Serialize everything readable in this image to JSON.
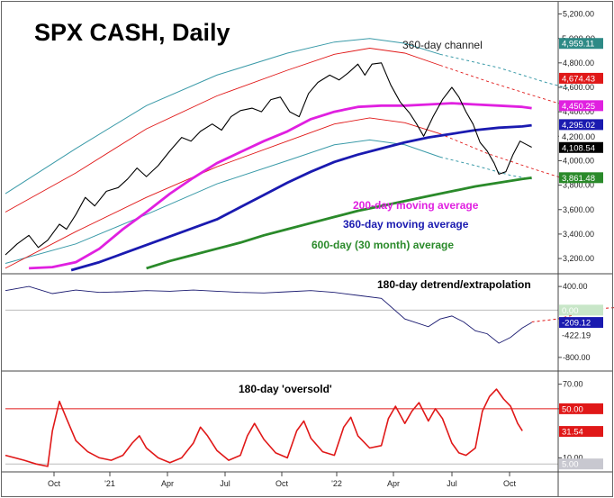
{
  "chart_data": [
    {
      "type": "line",
      "title": "SPX CASH, Daily",
      "x_ticks": [
        "Oct",
        "'21",
        "Apr",
        "Jul",
        "Oct",
        "'22",
        "Apr",
        "Jul",
        "Oct"
      ],
      "y_ticks": [
        3200,
        3400,
        3600,
        3800,
        4000,
        4200,
        4400,
        4600,
        4800,
        5000,
        5200
      ],
      "ylim": [
        3090,
        5270
      ],
      "series": [
        {
          "name": "SPX",
          "color": "#000000",
          "points": [
            [
              0,
              3230
            ],
            [
              0.5,
              3320
            ],
            [
              1,
              3390
            ],
            [
              1.4,
              3290
            ],
            [
              1.8,
              3350
            ],
            [
              2.3,
              3480
            ],
            [
              2.6,
              3440
            ],
            [
              3,
              3560
            ],
            [
              3.4,
              3700
            ],
            [
              3.8,
              3630
            ],
            [
              4.3,
              3750
            ],
            [
              4.8,
              3780
            ],
            [
              5.2,
              3850
            ],
            [
              5.6,
              3940
            ],
            [
              6,
              3870
            ],
            [
              6.5,
              3960
            ],
            [
              7,
              4080
            ],
            [
              7.5,
              4190
            ],
            [
              7.9,
              4160
            ],
            [
              8.3,
              4240
            ],
            [
              8.8,
              4300
            ],
            [
              9.2,
              4250
            ],
            [
              9.6,
              4360
            ],
            [
              10,
              4410
            ],
            [
              10.5,
              4430
            ],
            [
              10.9,
              4400
            ],
            [
              11.3,
              4500
            ],
            [
              11.7,
              4520
            ],
            [
              12.1,
              4400
            ],
            [
              12.5,
              4360
            ],
            [
              12.9,
              4550
            ],
            [
              13.3,
              4640
            ],
            [
              13.8,
              4700
            ],
            [
              14.2,
              4660
            ],
            [
              14.6,
              4720
            ],
            [
              15,
              4790
            ],
            [
              15.3,
              4700
            ],
            [
              15.6,
              4790
            ],
            [
              16,
              4800
            ],
            [
              16.4,
              4620
            ],
            [
              16.8,
              4480
            ],
            [
              17.2,
              4390
            ],
            [
              17.5,
              4300
            ],
            [
              17.8,
              4200
            ],
            [
              18.2,
              4360
            ],
            [
              18.6,
              4500
            ],
            [
              19,
              4600
            ],
            [
              19.3,
              4520
            ],
            [
              19.6,
              4400
            ],
            [
              19.9,
              4300
            ],
            [
              20.2,
              4150
            ],
            [
              20.5,
              4080
            ],
            [
              20.8,
              3980
            ],
            [
              21,
              3890
            ],
            [
              21.3,
              3910
            ],
            [
              21.6,
              4050
            ],
            [
              21.9,
              4160
            ],
            [
              22.2,
              4130
            ],
            [
              22.4,
              4110
            ]
          ]
        },
        {
          "name": "200-day moving average",
          "color": "#e020e0",
          "points": [
            [
              1,
              3120
            ],
            [
              2,
              3130
            ],
            [
              3,
              3170
            ],
            [
              4,
              3280
            ],
            [
              5,
              3440
            ],
            [
              6,
              3580
            ],
            [
              7,
              3730
            ],
            [
              8,
              3860
            ],
            [
              9,
              3980
            ],
            [
              10,
              4070
            ],
            [
              11,
              4160
            ],
            [
              12,
              4240
            ],
            [
              13,
              4340
            ],
            [
              14,
              4400
            ],
            [
              15,
              4440
            ],
            [
              16,
              4450
            ],
            [
              17,
              4450
            ],
            [
              18,
              4460
            ],
            [
              19,
              4470
            ],
            [
              20,
              4460
            ],
            [
              21,
              4450
            ],
            [
              22,
              4440
            ],
            [
              22.4,
              4430
            ]
          ]
        },
        {
          "name": "360-day moving average",
          "color": "#1a1ab0",
          "points": [
            [
              2.8,
              3105
            ],
            [
              4,
              3170
            ],
            [
              5,
              3240
            ],
            [
              6,
              3310
            ],
            [
              7,
              3380
            ],
            [
              8,
              3450
            ],
            [
              9,
              3520
            ],
            [
              10,
              3620
            ],
            [
              11,
              3720
            ],
            [
              12,
              3820
            ],
            [
              13,
              3910
            ],
            [
              14,
              3990
            ],
            [
              15,
              4050
            ],
            [
              16,
              4100
            ],
            [
              17,
              4150
            ],
            [
              18,
              4190
            ],
            [
              19,
              4220
            ],
            [
              20,
              4250
            ],
            [
              21,
              4270
            ],
            [
              22,
              4280
            ],
            [
              22.4,
              4290
            ]
          ]
        },
        {
          "name": "600-day (30 month) average",
          "color": "#2a8a2a",
          "points": [
            [
              6,
              3120
            ],
            [
              7,
              3180
            ],
            [
              8,
              3230
            ],
            [
              9,
              3280
            ],
            [
              10,
              3330
            ],
            [
              11,
              3390
            ],
            [
              12,
              3440
            ],
            [
              13,
              3490
            ],
            [
              14,
              3540
            ],
            [
              15,
              3590
            ],
            [
              16,
              3630
            ],
            [
              17,
              3670
            ],
            [
              18,
              3710
            ],
            [
              19,
              3750
            ],
            [
              20,
              3790
            ],
            [
              21,
              3820
            ],
            [
              22,
              3850
            ],
            [
              22.4,
              3860
            ]
          ]
        }
      ],
      "channel": {
        "name": "360-day channel",
        "color": "#3a9aa8"
      },
      "price_tags": [
        {
          "value": "5,000.00",
          "y": 5000,
          "bg": "#ffffff",
          "fg": "#222222"
        },
        {
          "value": "4,959.11",
          "y": 4959,
          "bg": "#2e8a86",
          "fg": "#ffffff"
        },
        {
          "value": "4,674.43",
          "y": 4674,
          "bg": "#e01818",
          "fg": "#ffffff"
        },
        {
          "value": "4,450.25",
          "y": 4450,
          "bg": "#e020e0",
          "fg": "#ffffff"
        },
        {
          "value": "4,295.02",
          "y": 4295,
          "bg": "#1a1ab0",
          "fg": "#ffffff"
        },
        {
          "value": "4,200.00",
          "y": 4200,
          "bg": "#ffffff",
          "fg": "#222222"
        },
        {
          "value": "4,108.54",
          "y": 4108,
          "bg": "#000000",
          "fg": "#ffffff"
        },
        {
          "value": "3,861.48",
          "y": 3861,
          "bg": "#2a8a2a",
          "fg": "#ffffff"
        }
      ],
      "annotations": [
        "200-day moving average",
        "360-day moving average",
        "600-day (30 month) average"
      ]
    },
    {
      "type": "line",
      "title": "180-day detrend/extrapolation",
      "y_ticks": [
        400,
        -800
      ],
      "ylim": [
        -1000,
        600
      ],
      "series": [
        {
          "name": "detrend",
          "color": "#1a1a70",
          "points": [
            [
              0,
              330
            ],
            [
              1,
              400
            ],
            [
              2,
              280
            ],
            [
              3,
              340
            ],
            [
              4,
              300
            ],
            [
              5,
              310
            ],
            [
              6,
              330
            ],
            [
              7,
              320
            ],
            [
              8,
              340
            ],
            [
              9,
              320
            ],
            [
              10,
              300
            ],
            [
              11,
              290
            ],
            [
              12,
              310
            ],
            [
              13,
              330
            ],
            [
              14,
              300
            ],
            [
              15,
              250
            ],
            [
              16,
              200
            ],
            [
              17,
              -150
            ],
            [
              18,
              -280
            ],
            [
              18.5,
              -150
            ],
            [
              19,
              -100
            ],
            [
              19.5,
              -200
            ],
            [
              20,
              -350
            ],
            [
              20.5,
              -400
            ],
            [
              21,
              -560
            ],
            [
              21.5,
              -460
            ],
            [
              22,
              -300
            ],
            [
              22.4,
              -209
            ]
          ]
        },
        {
          "name": "extrapolation",
          "color": "#e01818",
          "points": [
            [
              22.4,
              -200
            ],
            [
              23.5,
              -150
            ],
            [
              24.5,
              -50
            ],
            [
              25.5,
              30
            ],
            [
              26.5,
              60
            ],
            [
              27.5,
              40
            ],
            [
              28.5,
              -40
            ],
            [
              29.5,
              -150
            ]
          ]
        }
      ],
      "value_tags": [
        {
          "value": "0.00",
          "bg": "#c8e6c8",
          "fg": "#ffffff"
        },
        {
          "value": "-209.12",
          "bg": "#1a1ab0",
          "fg": "#ffffff"
        },
        {
          "value": "-422.19",
          "bg": "#ffffff",
          "fg": "#222222"
        }
      ]
    },
    {
      "type": "line",
      "title": "180-day 'oversold'",
      "y_ticks": [
        70,
        50,
        10
      ],
      "ylim": [
        0,
        80
      ],
      "series": [
        {
          "name": "oversold",
          "color": "#e01818",
          "points": [
            [
              0,
              12
            ],
            [
              0.8,
              8
            ],
            [
              1.3,
              5
            ],
            [
              1.8,
              3
            ],
            [
              2,
              32
            ],
            [
              2.3,
              56
            ],
            [
              2.6,
              42
            ],
            [
              3,
              24
            ],
            [
              3.5,
              15
            ],
            [
              4,
              10
            ],
            [
              4.5,
              8
            ],
            [
              5,
              12
            ],
            [
              5.4,
              22
            ],
            [
              5.7,
              28
            ],
            [
              6,
              18
            ],
            [
              6.5,
              10
            ],
            [
              7,
              6
            ],
            [
              7.5,
              10
            ],
            [
              8,
              22
            ],
            [
              8.3,
              35
            ],
            [
              8.6,
              28
            ],
            [
              9,
              16
            ],
            [
              9.5,
              8
            ],
            [
              10,
              12
            ],
            [
              10.3,
              28
            ],
            [
              10.6,
              38
            ],
            [
              11,
              25
            ],
            [
              11.5,
              14
            ],
            [
              12,
              10
            ],
            [
              12.4,
              32
            ],
            [
              12.7,
              40
            ],
            [
              13,
              26
            ],
            [
              13.5,
              15
            ],
            [
              14,
              12
            ],
            [
              14.4,
              35
            ],
            [
              14.7,
              43
            ],
            [
              15,
              28
            ],
            [
              15.5,
              18
            ],
            [
              16,
              20
            ],
            [
              16.3,
              42
            ],
            [
              16.6,
              52
            ],
            [
              17,
              38
            ],
            [
              17.3,
              48
            ],
            [
              17.6,
              55
            ],
            [
              18,
              40
            ],
            [
              18.3,
              50
            ],
            [
              18.6,
              42
            ],
            [
              19,
              22
            ],
            [
              19.3,
              14
            ],
            [
              19.6,
              12
            ],
            [
              20,
              18
            ],
            [
              20.3,
              48
            ],
            [
              20.6,
              60
            ],
            [
              20.9,
              66
            ],
            [
              21.2,
              58
            ],
            [
              21.5,
              52
            ],
            [
              21.8,
              38
            ],
            [
              22,
              32
            ]
          ]
        }
      ],
      "value_tags": [
        {
          "value": "50.00",
          "bg": "#e01818",
          "fg": "#ffffff"
        },
        {
          "value": "31.54",
          "bg": "#e01818",
          "fg": "#ffffff"
        },
        {
          "value": "5.00",
          "bg": "#c8c8d0",
          "fg": "#ffffff"
        }
      ]
    }
  ]
}
